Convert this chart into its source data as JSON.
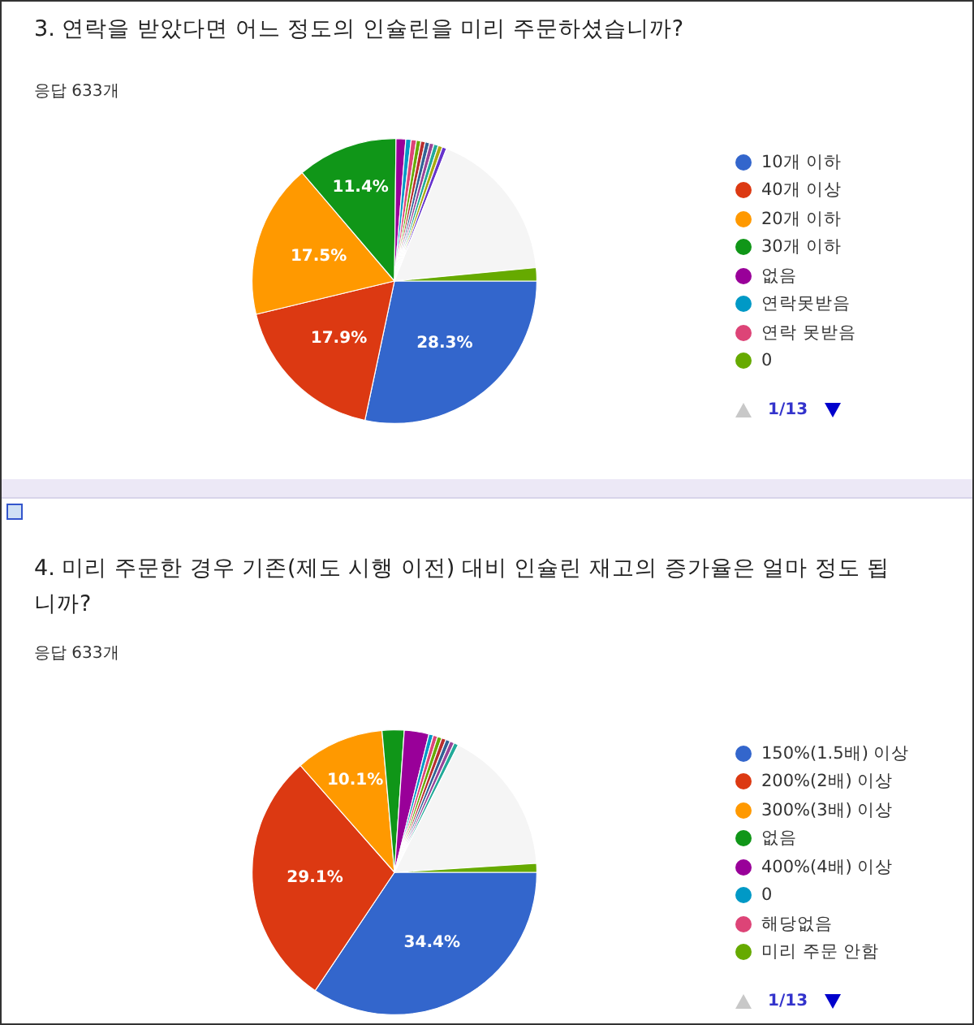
{
  "chart_data": [
    {
      "type": "pie",
      "title": "3. 연락을 받았다면 어느 정도의 인슐린을 미리 주문하셨습니까?",
      "subtitle": "응답 633개",
      "legend": "right",
      "annotations": [
        "1/13"
      ],
      "categories": [
        "10개 이하",
        "40개 이상",
        "20개 이하",
        "30개 이하",
        "없음",
        "연락못받음",
        "연락 못받음",
        "0",
        null,
        null,
        null,
        null,
        null,
        null,
        null,
        null
      ],
      "values": [
        28.3,
        17.9,
        17.5,
        11.4,
        1.1,
        0.6,
        0.6,
        0.5,
        0.5,
        0.5,
        0.5,
        0.5,
        0.5,
        0.5,
        17.5,
        1.5
      ],
      "colors": [
        "#3366cc",
        "#dc3912",
        "#ff9900",
        "#109618",
        "#990099",
        "#0099c6",
        "#dd4477",
        "#66aa00",
        "#b82e2e",
        "#316395",
        "#994499",
        "#22aa99",
        "#aaaa11",
        "#6633cc",
        "#f5f5f5",
        "#66aa00"
      ],
      "value_labels": [
        "28.3%",
        "17.9%",
        "17.5%",
        "11.4%",
        null,
        null,
        null,
        null,
        null,
        null,
        null,
        null,
        null,
        null,
        null,
        null
      ]
    },
    {
      "type": "pie",
      "title": "4. 미리 주문한 경우 기존(제도 시행 이전) 대비 인슐린 재고의 증가율은 얼마 정도 됩니까?",
      "subtitle": "응답 633개",
      "legend": "right",
      "annotations": [
        "1/13"
      ],
      "categories": [
        "150%(1.5배) 이상",
        "200%(2배) 이상",
        "300%(3배) 이상",
        "없음",
        "400%(4배) 이상",
        "0",
        "해당없음",
        "미리 주문 안함",
        null,
        null,
        null,
        null,
        null,
        null
      ],
      "values": [
        34.4,
        29.1,
        10.1,
        2.5,
        2.8,
        0.5,
        0.5,
        0.5,
        0.5,
        0.5,
        0.5,
        0.5,
        16.6,
        1.0
      ],
      "colors": [
        "#3366cc",
        "#dc3912",
        "#ff9900",
        "#109618",
        "#990099",
        "#0099c6",
        "#dd4477",
        "#66aa00",
        "#b82e2e",
        "#316395",
        "#994499",
        "#22aa99",
        "#f5f5f5",
        "#66aa00"
      ],
      "value_labels": [
        "34.4%",
        "29.1%",
        "10.1%",
        null,
        null,
        null,
        null,
        null,
        null,
        null,
        null,
        null,
        null,
        null
      ]
    }
  ]
}
